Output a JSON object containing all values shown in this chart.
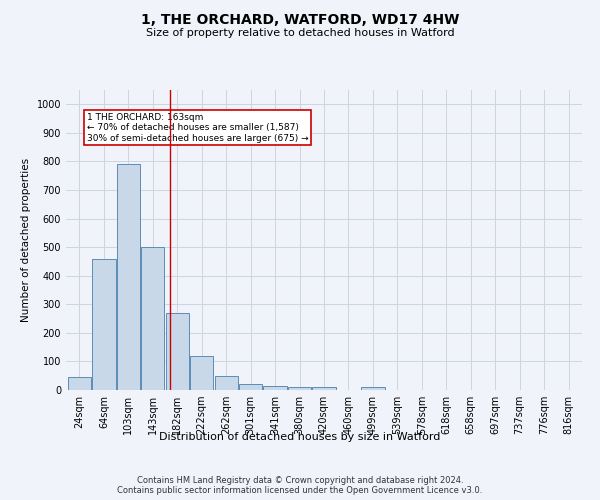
{
  "title": "1, THE ORCHARD, WATFORD, WD17 4HW",
  "subtitle": "Size of property relative to detached houses in Watford",
  "xlabel": "Distribution of detached houses by size in Watford",
  "ylabel": "Number of detached properties",
  "footer_line1": "Contains HM Land Registry data © Crown copyright and database right 2024.",
  "footer_line2": "Contains public sector information licensed under the Open Government Licence v3.0.",
  "bar_color": "#c8d8e8",
  "bar_edge_color": "#5b8db8",
  "categories": [
    "24sqm",
    "64sqm",
    "103sqm",
    "143sqm",
    "182sqm",
    "222sqm",
    "262sqm",
    "301sqm",
    "341sqm",
    "380sqm",
    "420sqm",
    "460sqm",
    "499sqm",
    "539sqm",
    "578sqm",
    "618sqm",
    "658sqm",
    "697sqm",
    "737sqm",
    "776sqm",
    "816sqm"
  ],
  "values": [
    45,
    460,
    790,
    500,
    270,
    120,
    50,
    20,
    15,
    10,
    10,
    0,
    10,
    0,
    0,
    0,
    0,
    0,
    0,
    0,
    0
  ],
  "ylim": [
    0,
    1050
  ],
  "yticks": [
    0,
    100,
    200,
    300,
    400,
    500,
    600,
    700,
    800,
    900,
    1000
  ],
  "red_line_x": 3.72,
  "annotation_color": "#cc0000",
  "grid_color": "#ccd5e0",
  "background_color": "#f0f4fa",
  "title_fontsize": 10,
  "subtitle_fontsize": 8,
  "xlabel_fontsize": 8,
  "ylabel_fontsize": 7.5,
  "tick_fontsize": 7,
  "annotation_fontsize": 6.5,
  "footer_fontsize": 6
}
